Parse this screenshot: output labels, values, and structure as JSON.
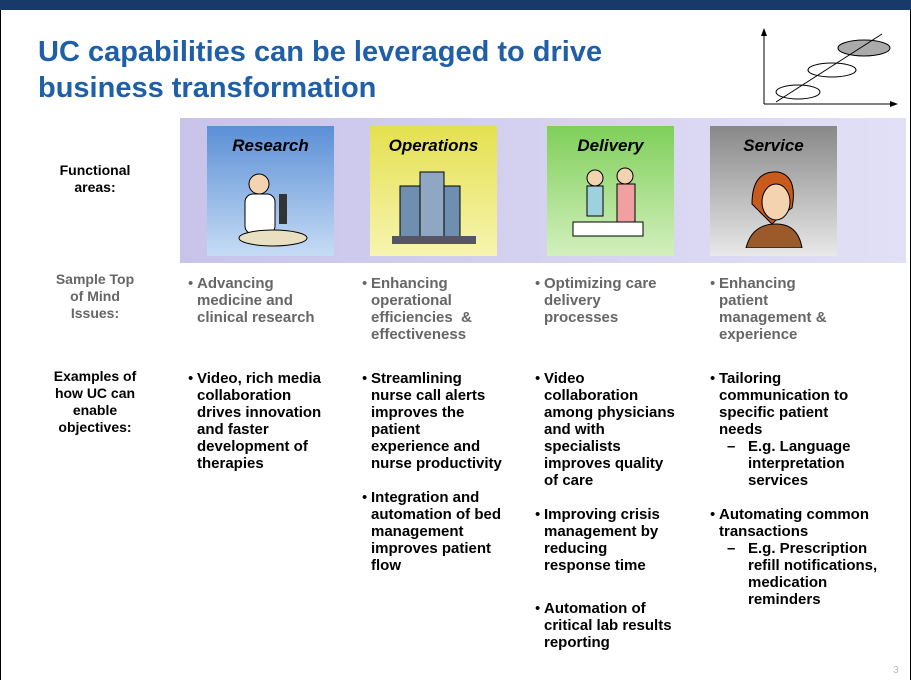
{
  "title_lines": [
    "UC capabilities can be leveraged to drive",
    "business transformation"
  ],
  "page_number": "3",
  "row_labels": {
    "functional_areas": [
      "Functional",
      "areas:"
    ],
    "issues": [
      "Sample Top",
      "of Mind",
      "Issues:"
    ],
    "examples": [
      "Examples of",
      "how UC can",
      "enable",
      "objectives:"
    ]
  },
  "columns": [
    {
      "name": "Research",
      "issue": [
        "Advancing",
        "medicine and",
        "clinical research"
      ],
      "examples": [
        {
          "lines": [
            "Video, rich media",
            "collaboration",
            "drives innovation",
            "and faster",
            "development of",
            "therapies"
          ]
        }
      ]
    },
    {
      "name": "Operations",
      "issue": [
        "Enhancing",
        "operational",
        "efficiencies  &",
        "effectiveness"
      ],
      "examples": [
        {
          "lines": [
            "Streamlining",
            "nurse call alerts",
            "improves the",
            "patient",
            "experience and",
            "nurse productivity"
          ]
        },
        {
          "lines": [
            "Integration and",
            "automation of bed",
            "management",
            "improves patient",
            "flow"
          ]
        }
      ]
    },
    {
      "name": "Delivery",
      "issue": [
        "Optimizing care",
        "delivery",
        "processes"
      ],
      "examples": [
        {
          "lines": [
            "Video",
            "collaboration",
            "among physicians",
            "and with",
            "specialists",
            "improves quality",
            "of care"
          ]
        },
        {
          "lines": [
            "Improving crisis",
            "management by",
            "reducing",
            "response time"
          ]
        },
        {
          "lines": [
            "Automation of",
            "critical lab results",
            "reporting"
          ]
        }
      ]
    },
    {
      "name": "Service",
      "issue": [
        "Enhancing",
        "patient",
        "management &",
        "experience"
      ],
      "examples": [
        {
          "lines": [
            "Tailoring",
            "communication to",
            "specific patient",
            "needs"
          ],
          "sub": [
            {
              "lines": [
                "E.g. Language",
                "interpretation",
                "services"
              ]
            }
          ]
        },
        {
          "lines": [
            "Automating common",
            "transactions"
          ],
          "sub": [
            {
              "lines": [
                "E.g. Prescription",
                "refill notifications,",
                "medication",
                "reminders"
              ]
            }
          ]
        }
      ]
    }
  ]
}
